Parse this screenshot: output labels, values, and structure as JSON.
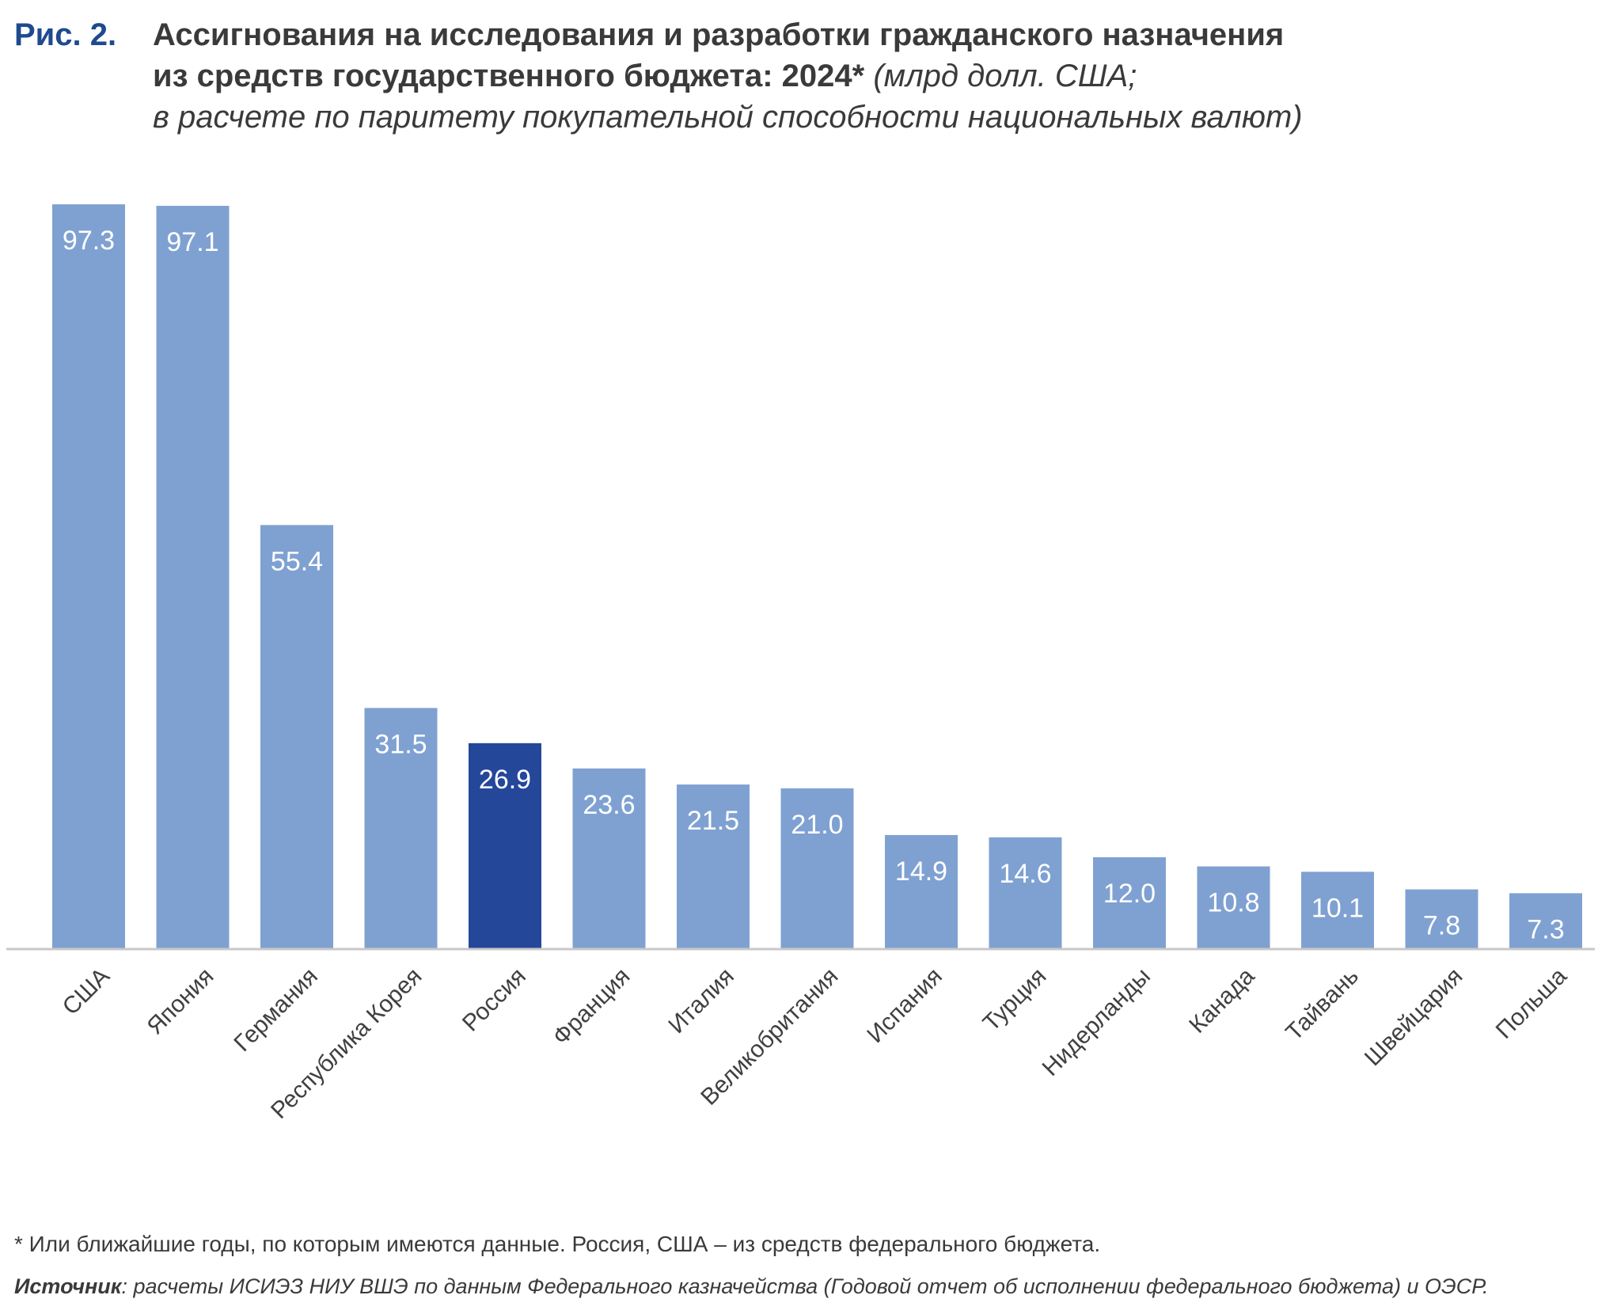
{
  "header": {
    "fig_label": "Рис. 2.",
    "title_line1": "Ассигнования на исследования и разработки гражданского назначения",
    "title_line2": "из средств государственного бюджета: 2024*",
    "title_unit_inline": "(млрд долл. США;",
    "title_line3": "в расчете по паритету покупательной способности национальных валют)"
  },
  "chart_data": {
    "type": "bar",
    "categories": [
      "США",
      "Япония",
      "Германия",
      "Республика Корея",
      "Россия",
      "Франция",
      "Италия",
      "Великобритания",
      "Испания",
      "Турция",
      "Нидерланды",
      "Канада",
      "Тайвань",
      "Швейцария",
      "Польша"
    ],
    "values": [
      97.3,
      97.1,
      55.4,
      31.5,
      26.9,
      23.6,
      21.5,
      21.0,
      14.9,
      14.6,
      12.0,
      10.8,
      10.1,
      7.8,
      7.3
    ],
    "value_labels": [
      "97.3",
      "97.1",
      "55.4",
      "31.5",
      "26.9",
      "23.6",
      "21.5",
      "21.0",
      "14.9",
      "14.6",
      "12.0",
      "10.8",
      "10.1",
      "7.8",
      "7.3"
    ],
    "highlight": "Россия",
    "ylim": [
      0,
      100
    ],
    "grid": false,
    "legend": "none",
    "colors": {
      "bar": "#7fa1d2",
      "highlight": "#25479a",
      "axis": "#c8c8c8",
      "label": "#404040",
      "value_text": "#ffffff"
    }
  },
  "footer": {
    "footnote": "* Или ближайшие годы, по которым имеются данные. Россия, США – из средств федерального бюджета.",
    "source_label": "Источник",
    "source_text": ": расчеты ИСИЭЗ НИУ ВШЭ по данным Федерального казначейства (Годовой отчет об исполнении федерального бюджета) и ОЭСР."
  }
}
